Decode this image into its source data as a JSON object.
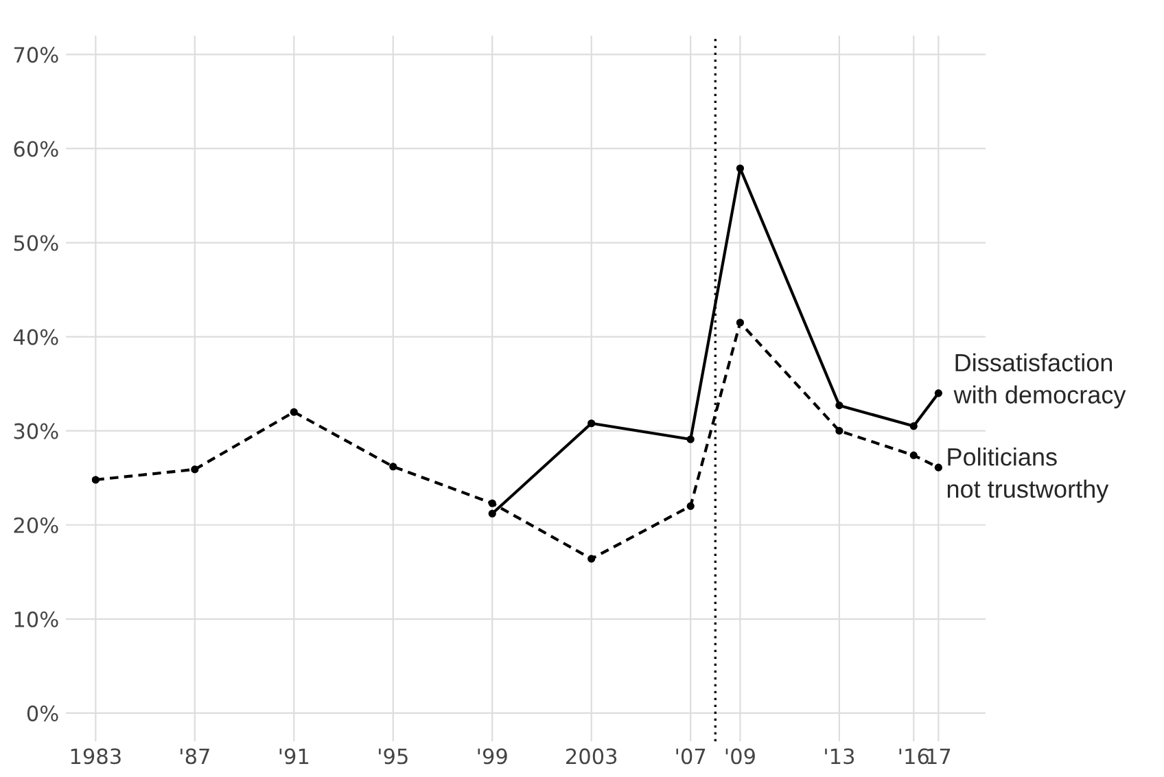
{
  "chart_data": {
    "type": "line",
    "x": [
      1983,
      1987,
      1991,
      1995,
      1999,
      2003,
      2007,
      2009,
      2013,
      2016,
      2017
    ],
    "series": [
      {
        "name": "Dissatisfaction\nwith democracy",
        "color": "#000000",
        "line_style": "solid",
        "values": [
          null,
          null,
          null,
          null,
          21.2,
          30.8,
          29.1,
          57.9,
          32.7,
          30.5,
          34.0
        ]
      },
      {
        "name": "Politicians\nnot trustworthy",
        "color": "#000000",
        "line_style": "dashed",
        "values": [
          24.8,
          25.9,
          32.0,
          26.2,
          22.3,
          16.4,
          22.0,
          41.5,
          30.0,
          27.4,
          26.1
        ]
      }
    ],
    "xlim": [
      1981.8,
      2018.9
    ],
    "xticks": [
      {
        "value": 1983,
        "label": "1983"
      },
      {
        "value": 1987,
        "label": "'87"
      },
      {
        "value": 1991,
        "label": "'91"
      },
      {
        "value": 1995,
        "label": "'95"
      },
      {
        "value": 1999,
        "label": "'99"
      },
      {
        "value": 2003,
        "label": "2003"
      },
      {
        "value": 2007,
        "label": "'07"
      },
      {
        "value": 2009,
        "label": "'09"
      },
      {
        "value": 2013,
        "label": "'13"
      },
      {
        "value": 2016,
        "label": "'16"
      },
      {
        "value": 2017,
        "label": "17"
      }
    ],
    "ylim": [
      -3,
      72
    ],
    "yticks": [
      {
        "value": 0,
        "label": "0%"
      },
      {
        "value": 10,
        "label": "10%"
      },
      {
        "value": 20,
        "label": "20%"
      },
      {
        "value": 30,
        "label": "30%"
      },
      {
        "value": 40,
        "label": "40%"
      },
      {
        "value": 50,
        "label": "50%"
      },
      {
        "value": 60,
        "label": "60%"
      },
      {
        "value": 70,
        "label": "70%"
      }
    ],
    "ref_lines": [
      {
        "axis": "x",
        "value": 2008,
        "color": "#000000",
        "line_style": "dotted"
      }
    ],
    "grid": true,
    "legend": false,
    "marker": "circle"
  }
}
